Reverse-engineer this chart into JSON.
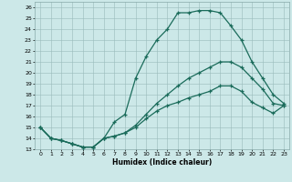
{
  "title": "",
  "xlabel": "Humidex (Indice chaleur)",
  "bg_color": "#cce8e8",
  "line_color": "#1a6b5a",
  "grid_color": "#99bbbb",
  "xlim": [
    -0.5,
    23.5
  ],
  "ylim": [
    13,
    26.5
  ],
  "xticks": [
    0,
    1,
    2,
    3,
    4,
    5,
    6,
    7,
    8,
    9,
    10,
    11,
    12,
    13,
    14,
    15,
    16,
    17,
    18,
    19,
    20,
    21,
    22,
    23
  ],
  "yticks": [
    13,
    14,
    15,
    16,
    17,
    18,
    19,
    20,
    21,
    22,
    23,
    24,
    25,
    26
  ],
  "line1_x": [
    0,
    1,
    2,
    3,
    4,
    5,
    6,
    7,
    8,
    9,
    10,
    11,
    12,
    13,
    14,
    15,
    16,
    17,
    18,
    19,
    20,
    21,
    22,
    23
  ],
  "line1_y": [
    15.0,
    14.0,
    13.8,
    13.5,
    13.2,
    13.2,
    14.0,
    15.5,
    16.2,
    19.5,
    21.5,
    23.0,
    24.0,
    25.5,
    25.5,
    25.7,
    25.7,
    25.5,
    24.3,
    23.0,
    21.0,
    19.5,
    18.0,
    17.2
  ],
  "line2_x": [
    0,
    1,
    2,
    3,
    4,
    5,
    6,
    7,
    8,
    9,
    10,
    11,
    12,
    13,
    14,
    15,
    16,
    17,
    18,
    19,
    20,
    21,
    22,
    23
  ],
  "line2_y": [
    15.0,
    14.0,
    13.8,
    13.5,
    13.2,
    13.2,
    14.0,
    14.2,
    14.5,
    15.2,
    16.2,
    17.2,
    18.0,
    18.8,
    19.5,
    20.0,
    20.5,
    21.0,
    21.0,
    20.5,
    19.5,
    18.5,
    17.2,
    17.0
  ],
  "line3_x": [
    0,
    1,
    2,
    3,
    4,
    5,
    6,
    7,
    8,
    9,
    10,
    11,
    12,
    13,
    14,
    15,
    16,
    17,
    18,
    19,
    20,
    21,
    22,
    23
  ],
  "line3_y": [
    15.0,
    14.0,
    13.8,
    13.5,
    13.2,
    13.2,
    14.0,
    14.2,
    14.5,
    15.0,
    15.8,
    16.5,
    17.0,
    17.3,
    17.7,
    18.0,
    18.3,
    18.8,
    18.8,
    18.3,
    17.3,
    16.8,
    16.3,
    17.0
  ]
}
